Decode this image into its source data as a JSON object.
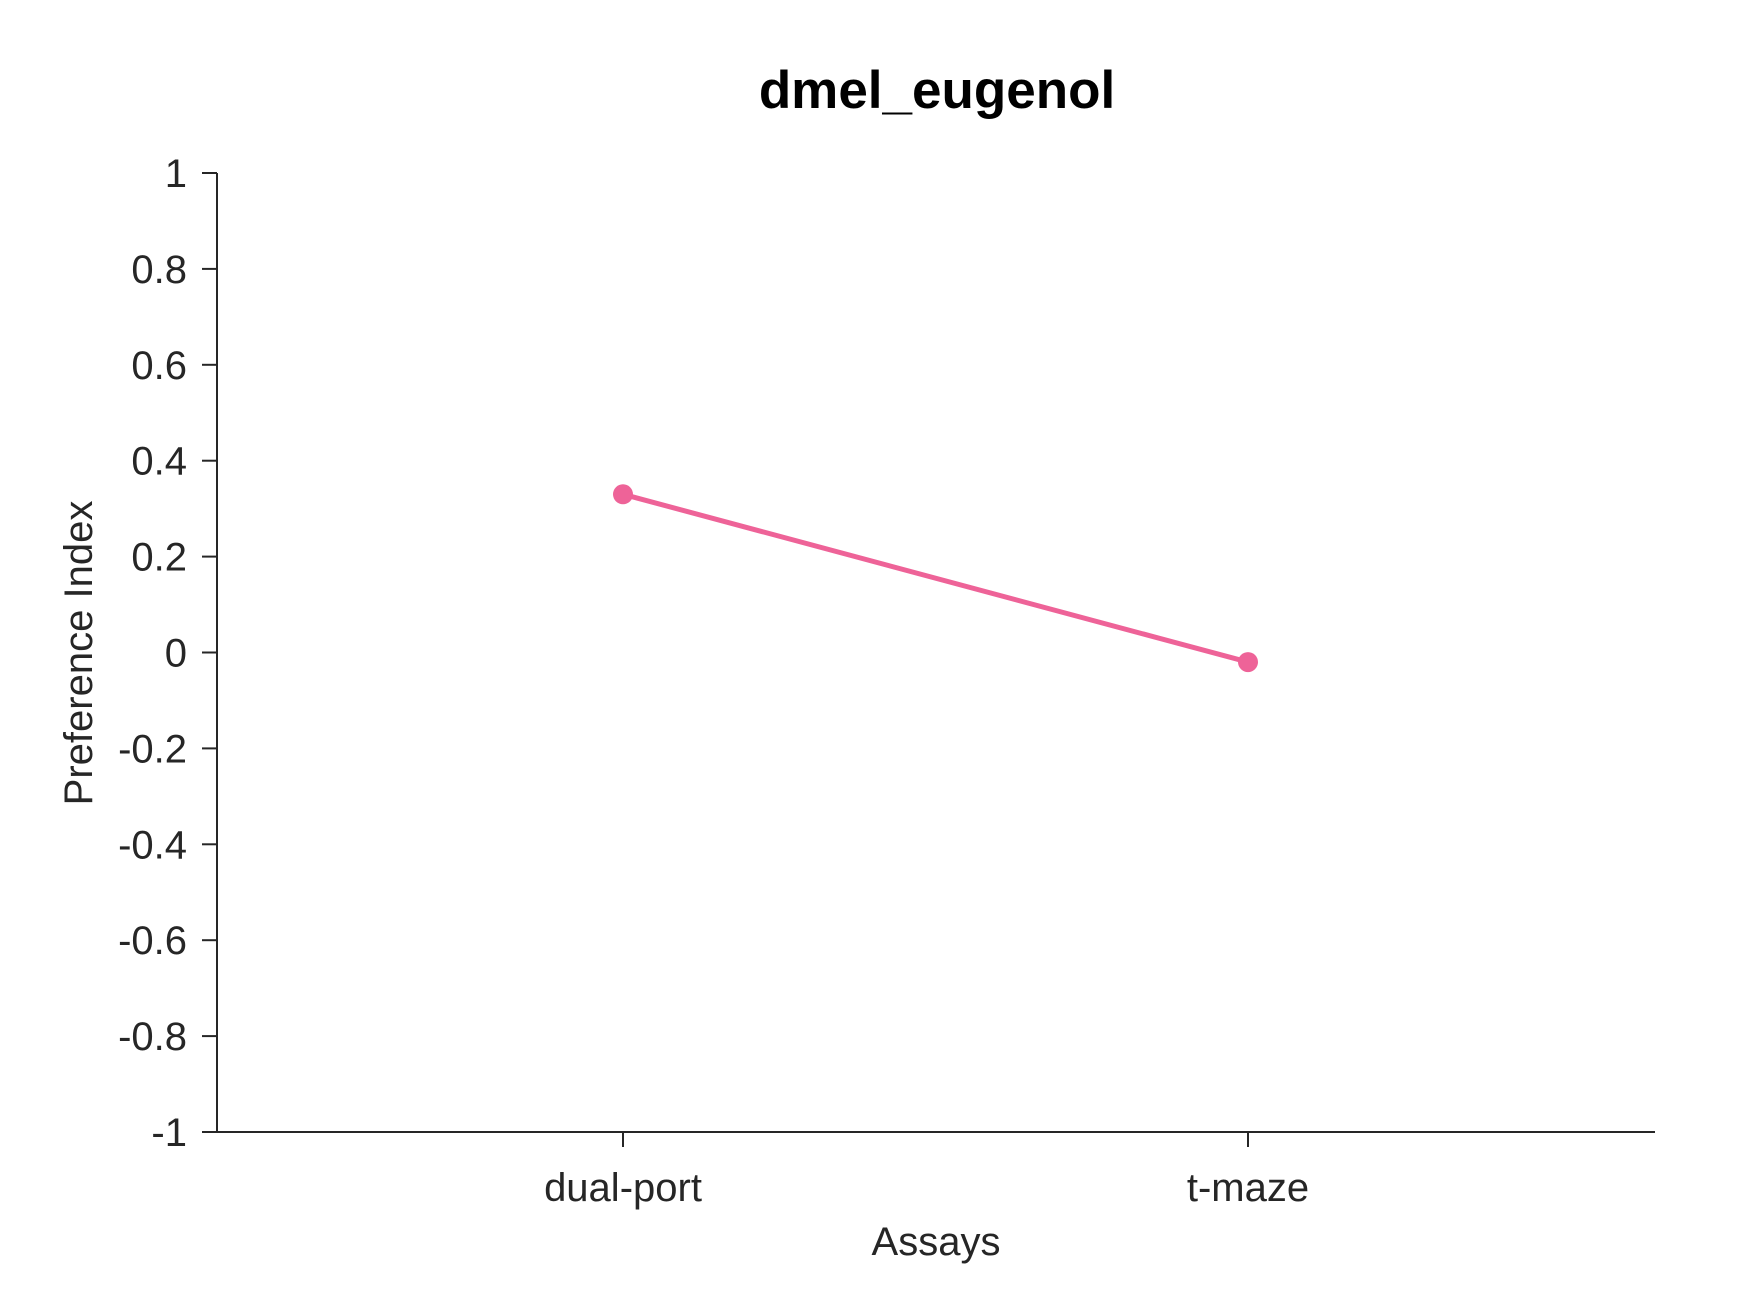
{
  "chart_data": {
    "type": "line",
    "title": "dmel_eugenol",
    "xlabel": "Assays",
    "ylabel": "Preference Index",
    "categories": [
      "dual-port",
      "t-maze"
    ],
    "series": [
      {
        "values": [
          0.33,
          -0.02
        ],
        "color": "#EE6398"
      }
    ],
    "ylim": [
      -1,
      1
    ],
    "yticks": [
      1,
      0.8,
      0.6,
      0.4,
      0.2,
      0,
      -0.2,
      -0.4,
      -0.6,
      -0.8,
      -1
    ],
    "ytick_labels": [
      "1",
      "0.8",
      "0.6",
      "0.4",
      "0.2",
      "0",
      "-0.2",
      "-0.4",
      "-0.6",
      "-0.8",
      "-1"
    ],
    "grid": false,
    "legend": "none"
  }
}
